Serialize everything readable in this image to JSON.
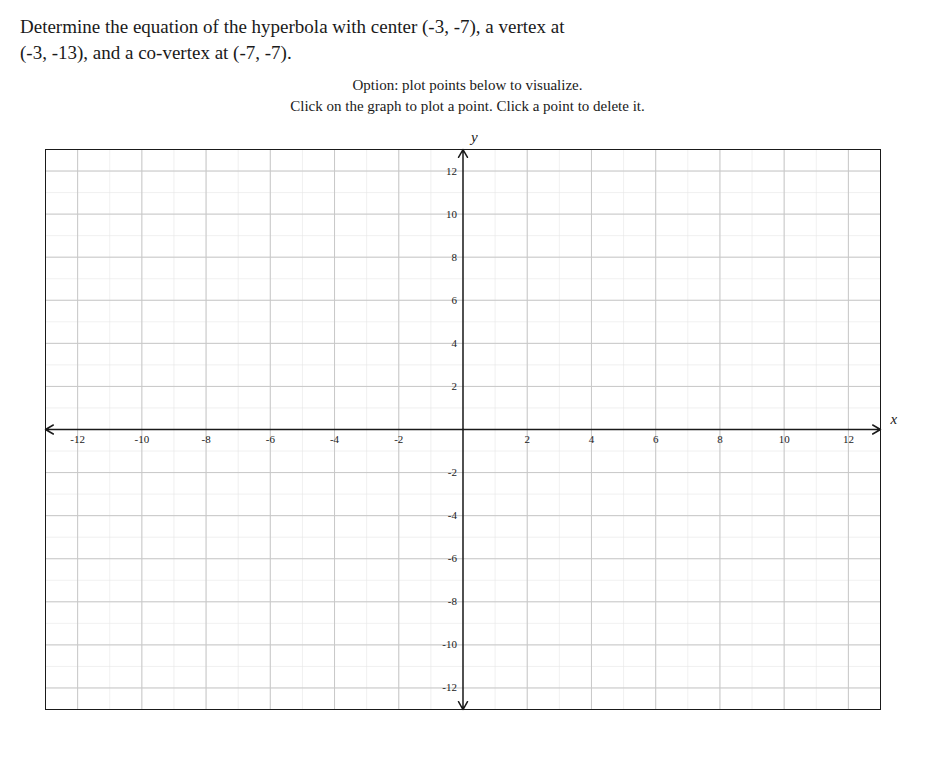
{
  "chart_data": {
    "type": "scatter",
    "title": "Determine the equation of the hyperbola with center (-3, -7), a vertex at\n(-3, -13), and a co-vertex at (-7, -7).",
    "subtitle": "Option: plot points below to visualize.",
    "annotations": [
      "Click on the graph to plot a point. Click a point to delete it."
    ],
    "x_label": "x",
    "y_label": "y",
    "x": [],
    "y": [],
    "xlim": [
      -13,
      13
    ],
    "ylim": [
      -13,
      13
    ],
    "xticks": [
      -12,
      -10,
      -8,
      -6,
      -4,
      -2,
      2,
      4,
      6,
      8,
      10,
      12
    ],
    "yticks": [
      -12,
      -10,
      -8,
      -6,
      -4,
      -2,
      2,
      4,
      6,
      8,
      10,
      12
    ],
    "grid": true
  }
}
